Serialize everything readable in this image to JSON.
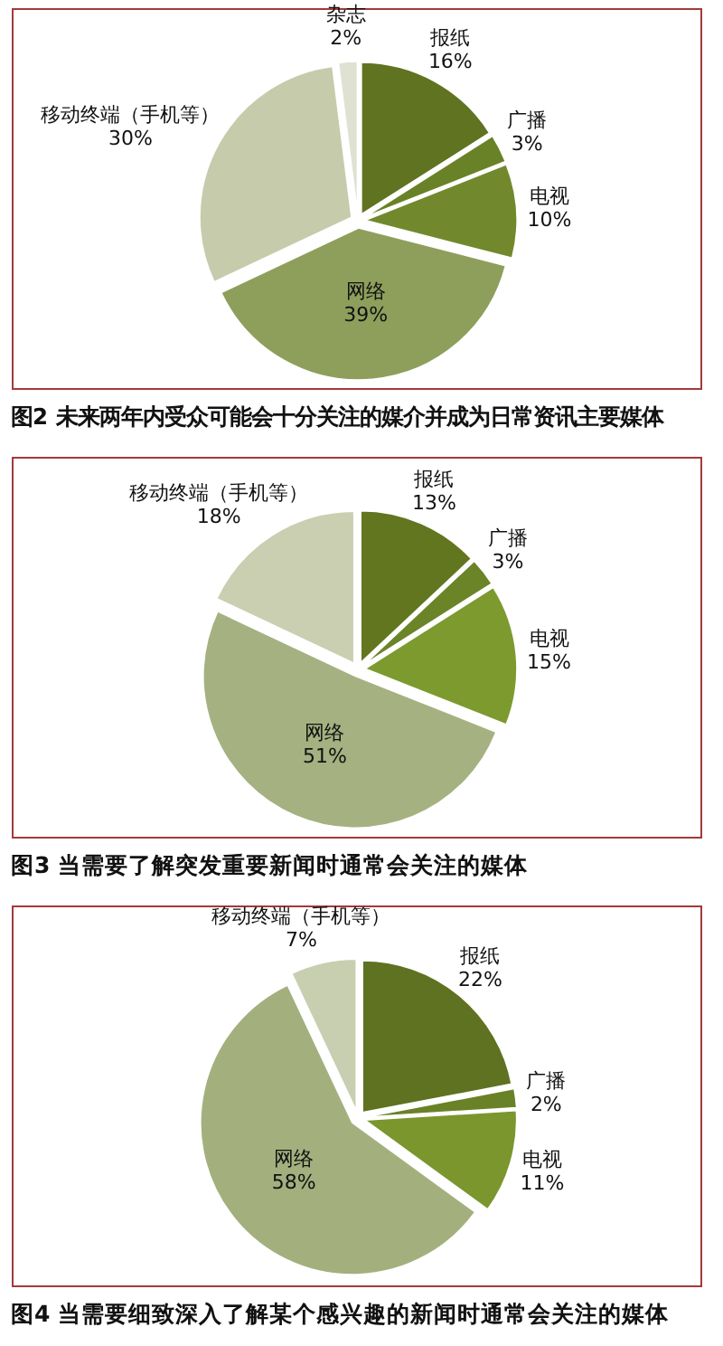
{
  "chart_data": [
    {
      "type": "pie",
      "title": "图2 未来两年内受众可能会十分关注的媒介并成为日常资讯主要媒体",
      "categories": [
        "报纸",
        "广播",
        "电视",
        "网络",
        "移动终端（手机等）",
        "杂志"
      ],
      "values": [
        16,
        3,
        10,
        39,
        30,
        2
      ],
      "value_labels": [
        "16%",
        "3%",
        "10%",
        "39%",
        "30%",
        "2%"
      ],
      "colors": [
        "#5f7321",
        "#6a8227",
        "#71892c",
        "#8e9f5c",
        "#c6ccab",
        "#dfe2d2"
      ]
    },
    {
      "type": "pie",
      "title": "图3 当需要了解突发重要新闻时通常会关注的媒体",
      "categories": [
        "报纸",
        "广播",
        "电视",
        "网络",
        "移动终端（手机等）"
      ],
      "values": [
        13,
        3,
        15,
        51,
        18
      ],
      "value_labels": [
        "13%",
        "3%",
        "15%",
        "51%",
        "18%"
      ],
      "colors": [
        "#61761f",
        "#6b8427",
        "#7d9a2e",
        "#a5b181",
        "#c9cfb0"
      ]
    },
    {
      "type": "pie",
      "title": "图4 当需要细致深入了解某个感兴趣的新闻时通常会关注的媒体",
      "categories": [
        "报纸",
        "广播",
        "电视",
        "网络",
        "移动终端（手机等）"
      ],
      "values": [
        22,
        2,
        11,
        58,
        7
      ],
      "value_labels": [
        "22%",
        "2%",
        "11%",
        "58%",
        "7%"
      ],
      "colors": [
        "#5e7222",
        "#6a8227",
        "#7a962d",
        "#a3b07e",
        "#c8ceb0"
      ]
    }
  ]
}
